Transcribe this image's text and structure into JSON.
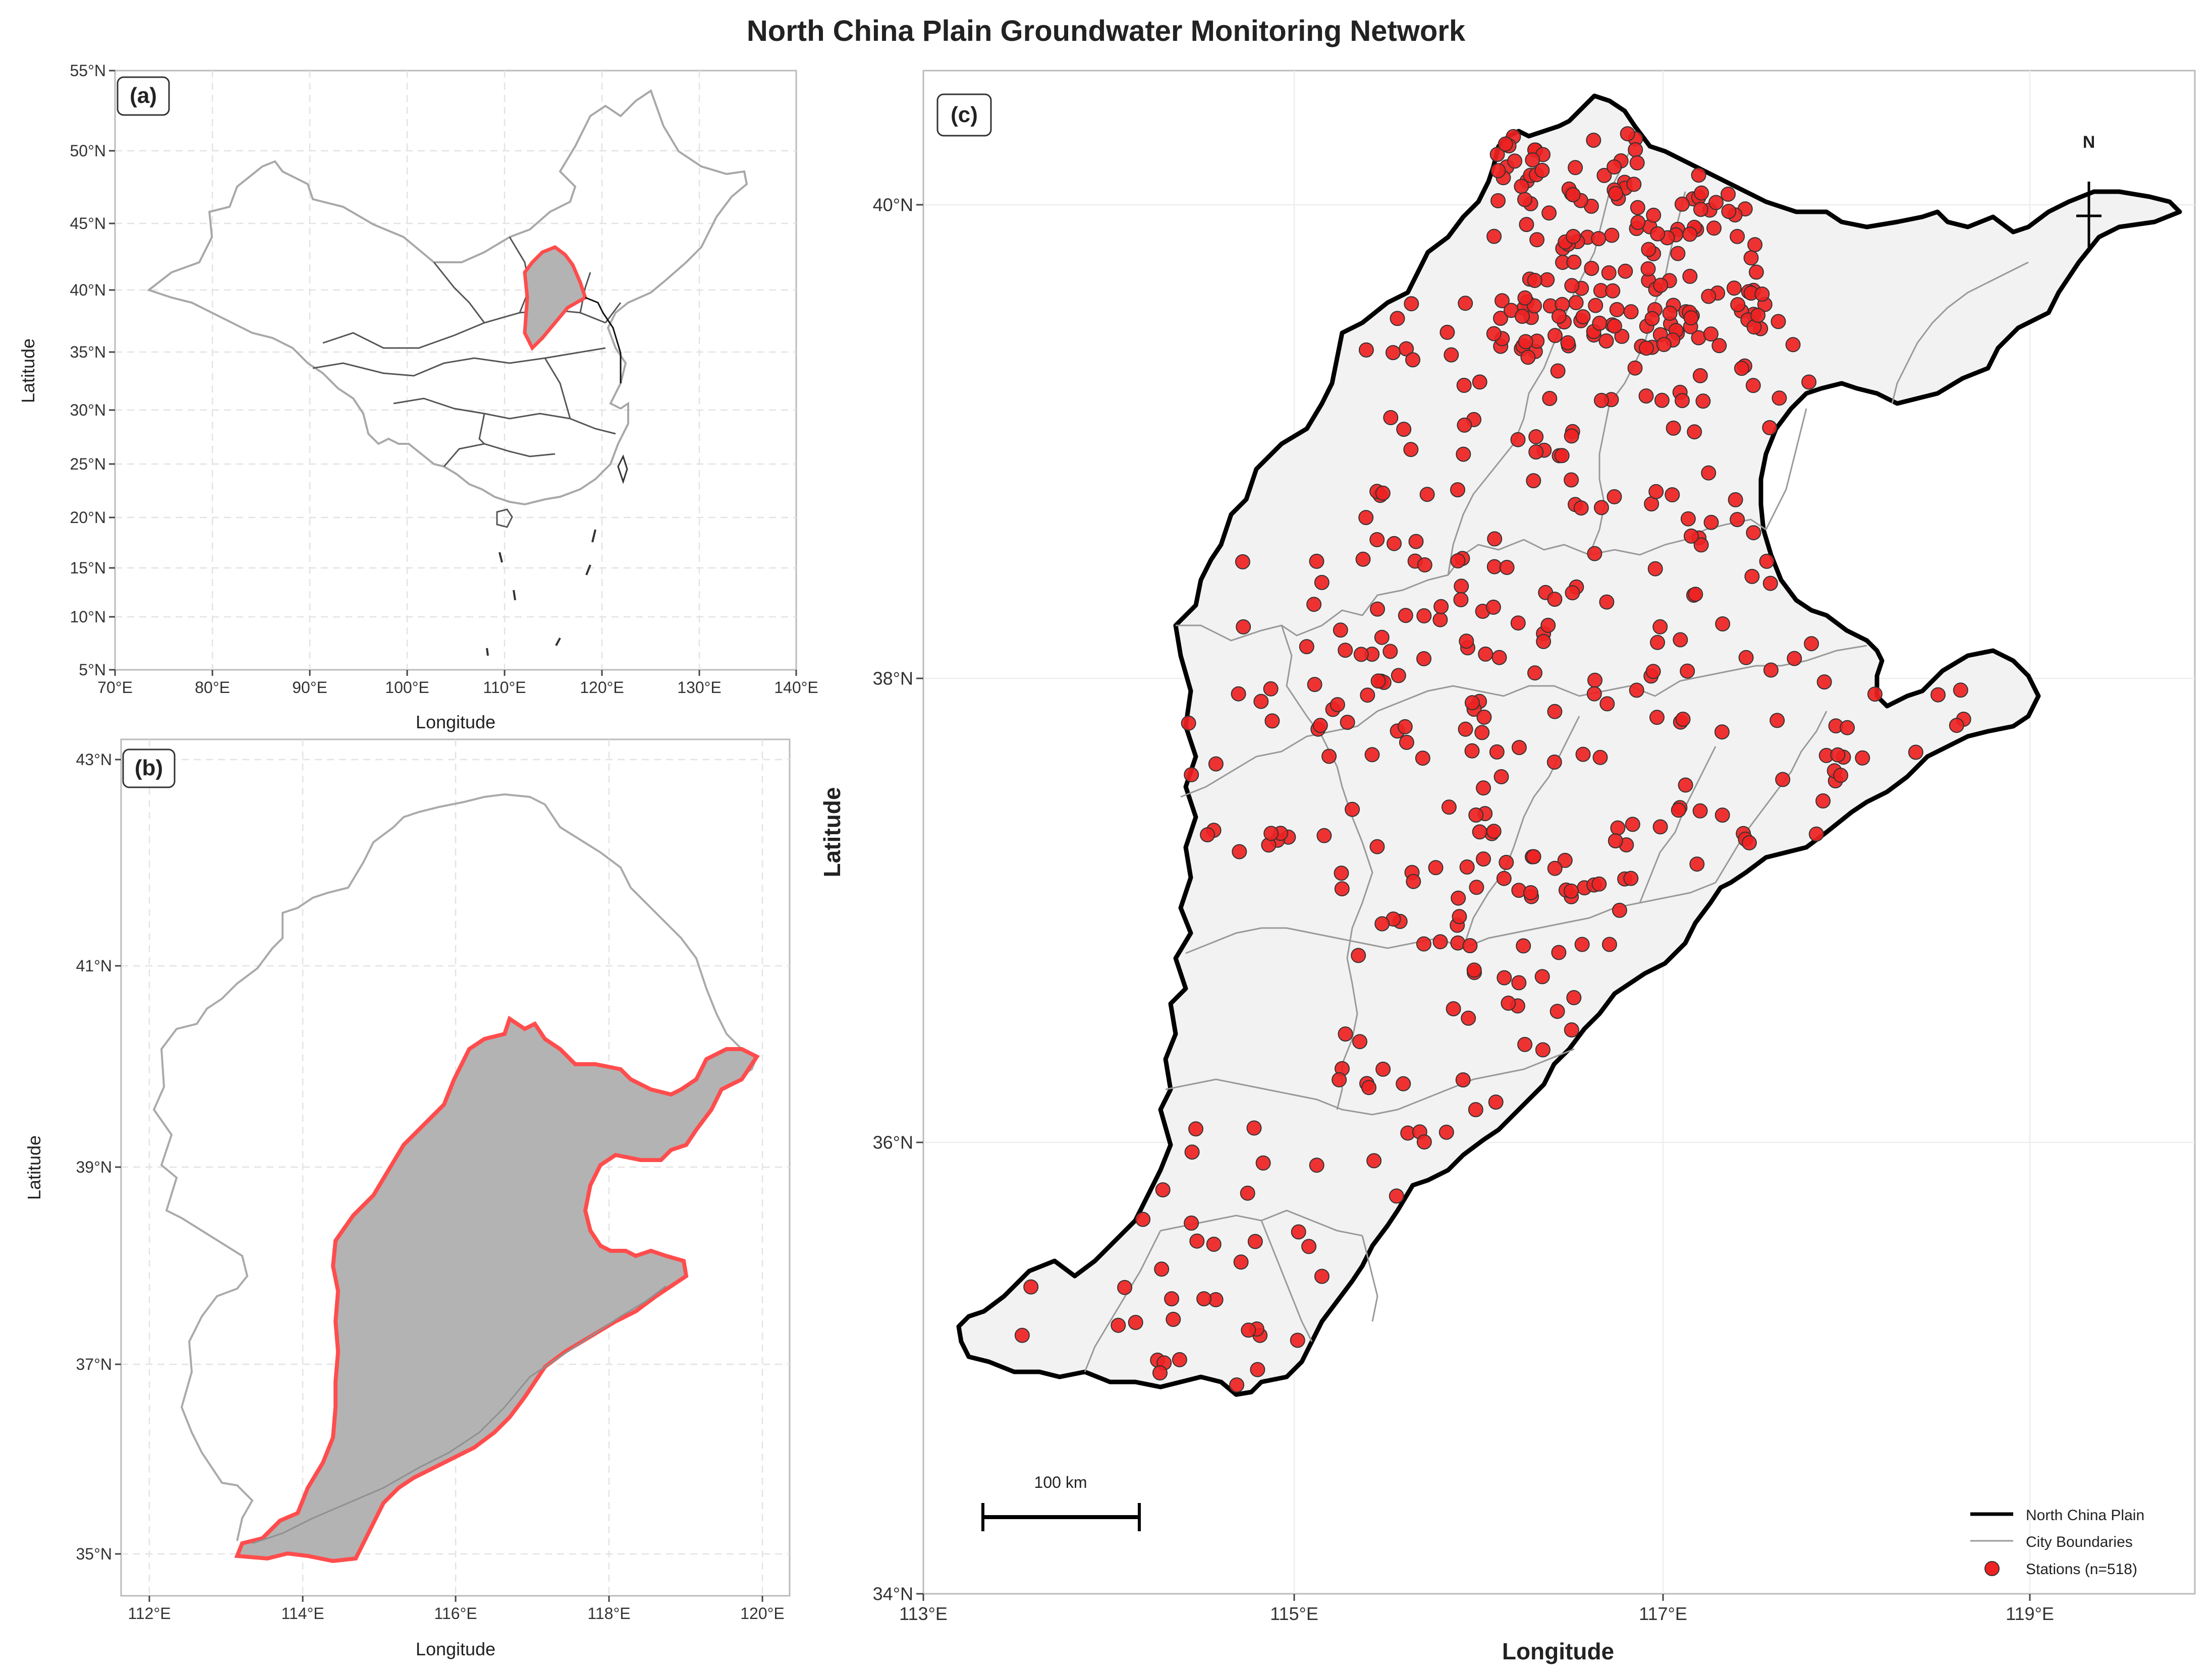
{
  "figure": {
    "title": "North China Plain Groundwater Monitoring Network"
  },
  "colors": {
    "plain_fill": "#b3b3b3",
    "plain_edge": "#ff4d4d",
    "station": "#ee2222",
    "boundary": "#999999",
    "ncp_fill_c": "#f2f2f2",
    "ncp_edge_c": "#000000"
  },
  "panel_a": {
    "label": "(a)",
    "xlabel": "Longitude",
    "ylabel": "Latitude",
    "xticks": [
      "70°E",
      "80°E",
      "90°E",
      "100°E",
      "110°E",
      "120°E",
      "130°E",
      "140°E"
    ],
    "yticks": [
      "5°N",
      "10°N",
      "15°N",
      "20°N",
      "25°N",
      "30°N",
      "35°N",
      "40°N",
      "45°N",
      "50°N",
      "55°N"
    ]
  },
  "panel_b": {
    "label": "(b)",
    "xlabel": "Longitude",
    "ylabel": "Latitude",
    "xticks": [
      "112°E",
      "114°E",
      "116°E",
      "118°E",
      "120°E"
    ],
    "yticks": [
      "35°N",
      "37°N",
      "39°N",
      "41°N",
      "43°N"
    ]
  },
  "panel_c": {
    "label": "(c)",
    "xlabel": "Longitude",
    "ylabel": "Latitude",
    "xticks": [
      "113°E",
      "115°E",
      "117°E",
      "119°E"
    ],
    "yticks": [
      "34°N",
      "36°N",
      "38°N",
      "40°N"
    ],
    "north_arrow": "N",
    "scale_bar": "100 km",
    "legend": [
      "North China Plain",
      "City Boundaries",
      "Stations (n=518)"
    ]
  },
  "map_data": {
    "panel_a_extent": {
      "lon": [
        70,
        140
      ],
      "lat": [
        5,
        55
      ]
    },
    "panel_b_extent": {
      "lon": [
        111.7,
        120.3
      ],
      "lat": [
        34.6,
        43.2
      ]
    },
    "panel_c_extent": {
      "lon": [
        113,
        119.9
      ],
      "lat": [
        34,
        40.8
      ]
    },
    "station_count": 518
  }
}
